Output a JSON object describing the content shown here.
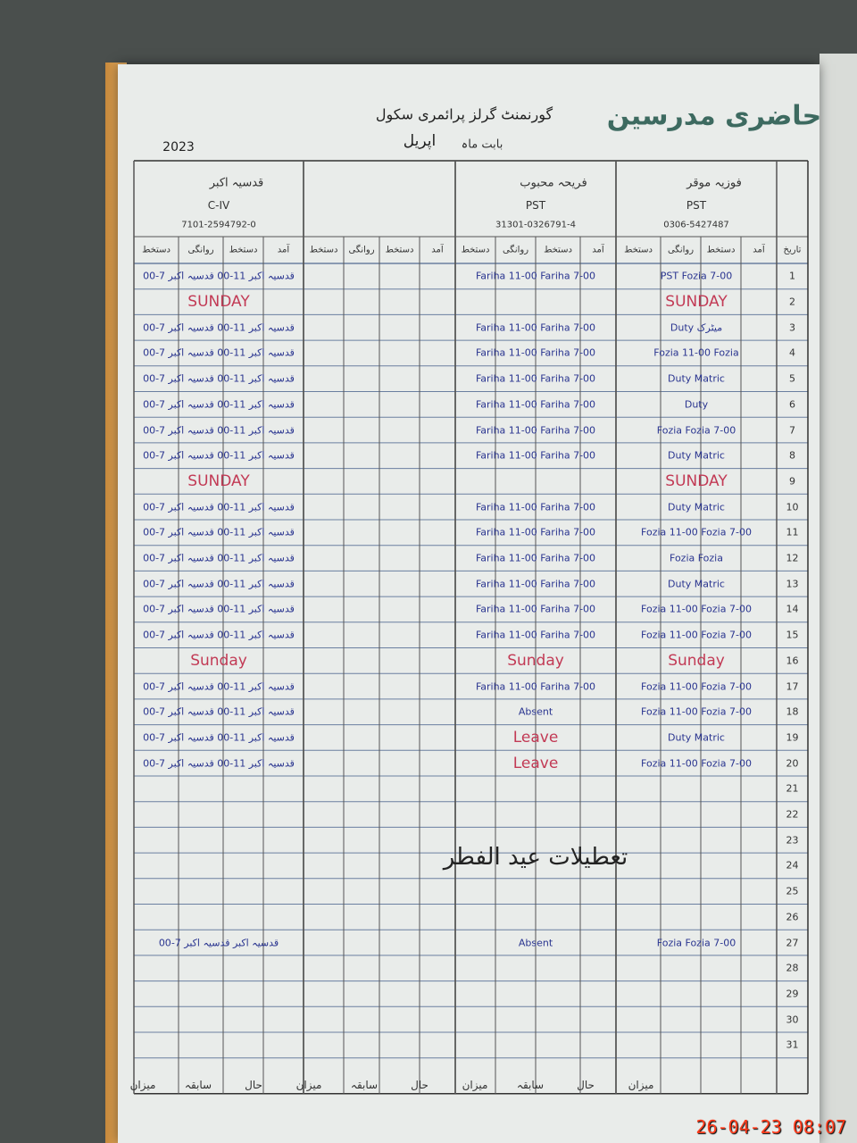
{
  "header": {
    "title": "حاضری مدرسین",
    "school": "گورنمنٹ گرلز پرائمری سکول",
    "month_label": "بابت ماہ",
    "month": "اپریل",
    "year": "2023"
  },
  "teachers": {
    "fozia": {
      "name": "فوزیہ موقر",
      "designation": "PST",
      "phone": "0306-5427487"
    },
    "fariha": {
      "name": "فریحہ محبوب",
      "designation": "PST",
      "phone": "31301-0326791-4"
    },
    "left": {
      "name": "قدسیہ اکبر",
      "designation": "C-IV",
      "phone": "7101-2594792-0"
    }
  },
  "date_header": "تاریخ",
  "column_headers": [
    "آمد",
    "دستخط",
    "روانگی",
    "دستخط"
  ],
  "rows": [
    {
      "day": 1,
      "fozia": "PST Fozia 7-00",
      "fariha": "Fariha 11-00 Fariha 7-00",
      "left": "قدسیہ اکبر 11-00 قدسیہ اکبر 7-00"
    },
    {
      "day": 2,
      "fozia": {
        "text": "SUNDAY",
        "ink": "red"
      },
      "left": {
        "text": "SUNDAY",
        "ink": "red"
      }
    },
    {
      "day": 3,
      "fozia": "Duty میٹرک",
      "fariha": "Fariha 11-00 Fariha 7-00",
      "left": "قدسیہ اکبر 11-00 قدسیہ اکبر 7-00"
    },
    {
      "day": 4,
      "fozia": "Fozia 11-00 Fozia",
      "fariha": "Fariha 11-00 Fariha 7-00",
      "left": "قدسیہ اکبر 11-00 قدسیہ اکبر 7-00"
    },
    {
      "day": 5,
      "fozia": "Duty Matric",
      "fariha": "Fariha 11-00 Fariha 7-00",
      "left": "قدسیہ اکبر 11-00 قدسیہ اکبر 7-00"
    },
    {
      "day": 6,
      "fozia": "Duty",
      "fariha": "Fariha 11-00 Fariha 7-00",
      "left": "قدسیہ اکبر 11-00 قدسیہ اکبر 7-00"
    },
    {
      "day": 7,
      "fozia": "Fozia Fozia 7-00",
      "fariha": "Fariha 11-00 Fariha 7-00",
      "left": "قدسیہ اکبر 11-00 قدسیہ اکبر 7-00"
    },
    {
      "day": 8,
      "fozia": "Duty Matric",
      "fariha": "Fariha 11-00 Fariha 7-00",
      "left": "قدسیہ اکبر 11-00 قدسیہ اکبر 7-00"
    },
    {
      "day": 9,
      "fozia": {
        "text": "SUNDAY",
        "ink": "red"
      },
      "left": {
        "text": "SUNDAY",
        "ink": "red"
      }
    },
    {
      "day": 10,
      "fozia": "Duty Matric",
      "fariha": "Fariha 11-00 Fariha 7-00",
      "left": "قدسیہ اکبر 11-00 قدسیہ اکبر 7-00"
    },
    {
      "day": 11,
      "fozia": "Fozia 11-00 Fozia 7-00",
      "fariha": "Fariha 11-00 Fariha 7-00",
      "left": "قدسیہ اکبر 11-00 قدسیہ اکبر 7-00"
    },
    {
      "day": 12,
      "fozia": "Fozia Fozia",
      "fariha": "Fariha 11-00 Fariha 7-00",
      "left": "قدسیہ اکبر 11-00 قدسیہ اکبر 7-00"
    },
    {
      "day": 13,
      "fozia": "Duty Matric",
      "fariha": "Fariha 11-00 Fariha 7-00",
      "left": "قدسیہ اکبر 11-00 قدسیہ اکبر 7-00"
    },
    {
      "day": 14,
      "fozia": "Fozia 11-00 Fozia 7-00",
      "fariha": "Fariha 11-00 Fariha 7-00",
      "left": "قدسیہ اکبر 11-00 قدسیہ اکبر 7-00"
    },
    {
      "day": 15,
      "fozia": "Fozia 11-00 Fozia 7-00",
      "fariha": "Fariha 11-00 Fariha 7-00",
      "left": "قدسیہ اکبر 11-00 قدسیہ اکبر 7-00"
    },
    {
      "day": 16,
      "fozia": {
        "text": "Sunday",
        "ink": "red"
      },
      "fariha": {
        "text": "Sunday",
        "ink": "red"
      },
      "left": {
        "text": "Sunday",
        "ink": "red"
      }
    },
    {
      "day": 17,
      "fozia": "Fozia 11-00 Fozia 7-00",
      "fariha": "Fariha 11-00 Fariha 7-00",
      "left": "قدسیہ اکبر 11-00 قدسیہ اکبر 7-00"
    },
    {
      "day": 18,
      "fozia": "Fozia 11-00 Fozia 7-00",
      "fariha": "Absent",
      "left": "قدسیہ اکبر 11-00 قدسیہ اکبر 7-00"
    },
    {
      "day": 19,
      "fozia": "Duty Matric",
      "fariha": {
        "text": "Leave",
        "ink": "red"
      },
      "left": "قدسیہ اکبر 11-00 قدسیہ اکبر 7-00"
    },
    {
      "day": 20,
      "fozia": "Fozia 11-00 Fozia 7-00",
      "fariha": {
        "text": "Leave",
        "ink": "red"
      },
      "left": "قدسیہ اکبر 11-00 قدسیہ اکبر 7-00"
    },
    {
      "day": 21
    },
    {
      "day": 22
    },
    {
      "day": 23
    },
    {
      "day": 24
    },
    {
      "day": 25
    },
    {
      "day": 26
    },
    {
      "day": 27,
      "fozia": "Fozia Fozia 7-00",
      "fariha": "Absent",
      "left": "قدسیہ اکبر قدسیہ اکبر 7-00"
    },
    {
      "day": 28
    },
    {
      "day": 29
    },
    {
      "day": 30
    },
    {
      "day": 31
    }
  ],
  "holiday_note": "تعطیلات عید الفطر",
  "footer": [
    "میزان",
    "سابقہ",
    "حال",
    "میزان",
    "سابقہ",
    "حال",
    "میزان",
    "سابقہ",
    "حال",
    "میزان"
  ],
  "timestamp": "26-04-23  08:07"
}
